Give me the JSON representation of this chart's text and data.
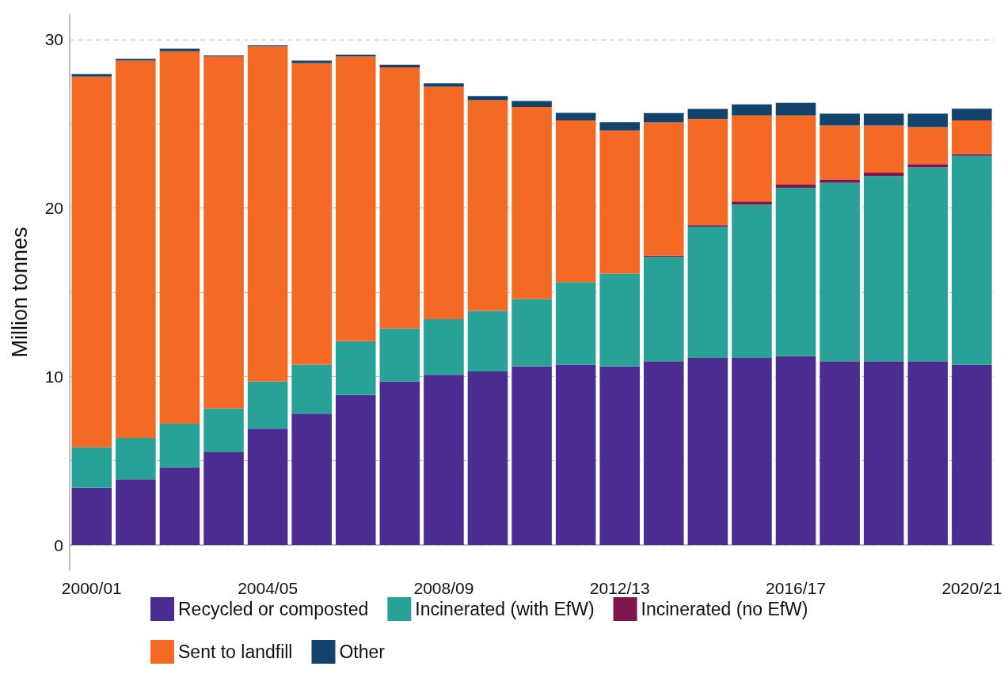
{
  "chart_data": {
    "type": "bar",
    "stacked": true,
    "ylabel": "Million tonnes",
    "categories": [
      "2000/01",
      null,
      null,
      null,
      "2004/05",
      null,
      null,
      null,
      "2008/09",
      null,
      null,
      null,
      "2012/13",
      null,
      null,
      null,
      "2016/17",
      null,
      null,
      null,
      "2020/21"
    ],
    "series": [
      {
        "name": "Recycled or composted",
        "color": "#4b2c91",
        "values": [
          3.4,
          3.9,
          4.6,
          5.5,
          6.9,
          7.8,
          8.9,
          9.7,
          10.1,
          10.3,
          10.6,
          10.7,
          10.6,
          10.9,
          11.1,
          11.1,
          11.2,
          10.9,
          10.9,
          10.9,
          10.7
        ]
      },
      {
        "name": "Incinerated (with EfW)",
        "color": "#28a197",
        "values": [
          2.4,
          2.45,
          2.6,
          2.6,
          2.8,
          2.9,
          3.2,
          3.15,
          3.3,
          3.6,
          4.0,
          4.9,
          5.5,
          6.2,
          7.8,
          9.1,
          10.0,
          10.6,
          11.0,
          11.5,
          12.4
        ]
      },
      {
        "name": "Incinerated (no EfW)",
        "color": "#801650",
        "values": [
          0,
          0,
          0,
          0,
          0,
          0,
          0,
          0,
          0,
          0,
          0,
          0,
          0,
          0.08,
          0.08,
          0.2,
          0.2,
          0.2,
          0.2,
          0.2,
          0.1
        ]
      },
      {
        "name": "Sent to landfill",
        "color": "#f46a25",
        "values": [
          22.0,
          22.4,
          22.1,
          20.9,
          19.9,
          17.9,
          16.9,
          15.5,
          13.8,
          12.5,
          11.4,
          9.6,
          8.5,
          7.9,
          6.3,
          5.1,
          4.1,
          3.2,
          2.8,
          2.2,
          2.0
        ]
      },
      {
        "name": "Other",
        "color": "#12436d",
        "values": [
          0.15,
          0.1,
          0.15,
          0.05,
          0.05,
          0.15,
          0.1,
          0.15,
          0.2,
          0.25,
          0.35,
          0.45,
          0.5,
          0.55,
          0.6,
          0.65,
          0.75,
          0.7,
          0.7,
          0.8,
          0.7
        ]
      }
    ],
    "ylim": [
      -1.5,
      31.5
    ],
    "yticks": [
      0,
      {
        "value": 5,
        "label": null
      },
      10,
      {
        "value": 15,
        "label": null
      },
      20,
      {
        "value": 25,
        "label": null
      },
      30
    ],
    "grid": "y",
    "legend": "bottom"
  }
}
